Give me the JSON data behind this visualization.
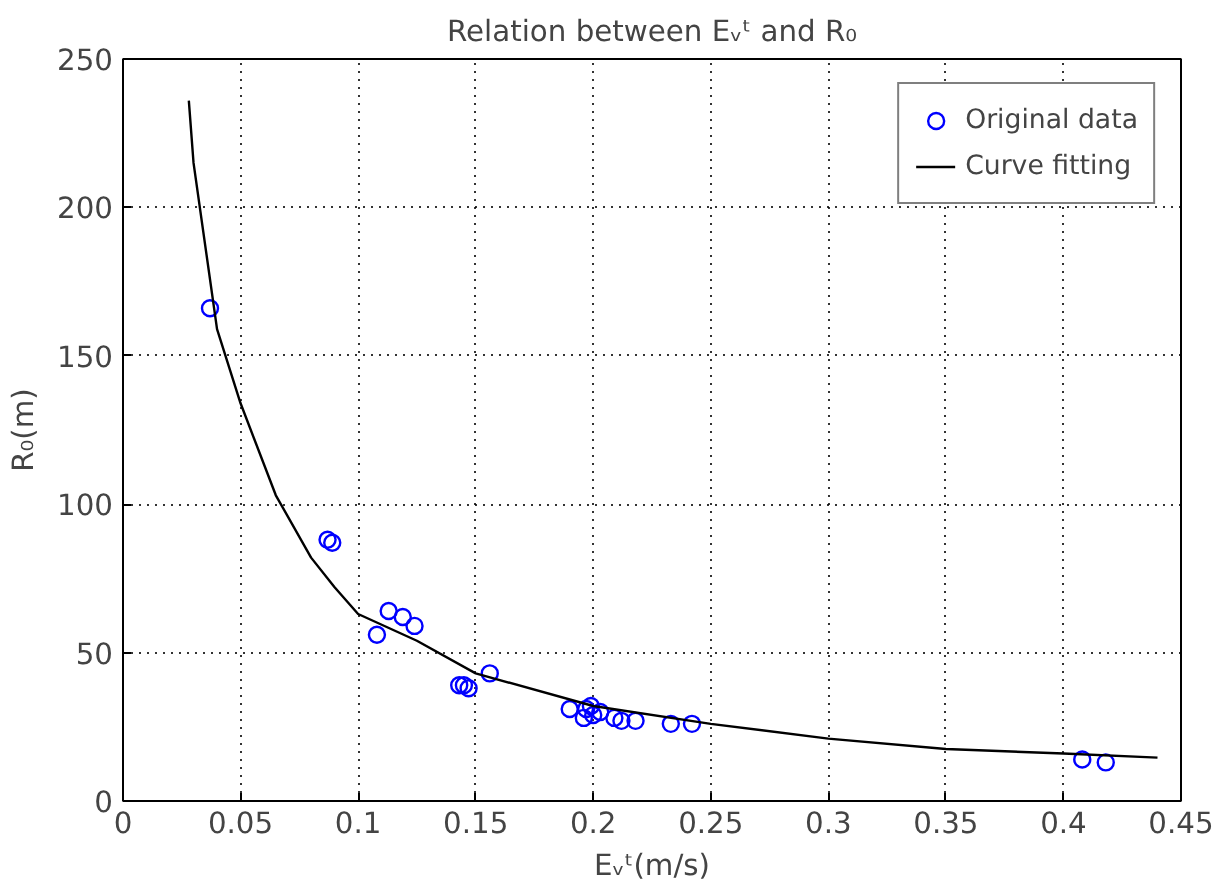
{
  "chart_data": {
    "type": "scatter",
    "title": "Relation between Eᵥᵗ and R₀",
    "xlabel": "Eᵥᵗ(m/s)",
    "ylabel": "R₀(m)",
    "xlim": [
      0,
      0.45
    ],
    "xticks": [
      0,
      0.05,
      0.1,
      0.15,
      0.2,
      0.25,
      0.3,
      0.35,
      0.4,
      0.45
    ],
    "ylim": [
      0,
      250
    ],
    "yticks": [
      0,
      50,
      100,
      150,
      200,
      250
    ],
    "grid": true,
    "legend": "top right",
    "series": [
      {
        "name": "Original data",
        "marker": "circle",
        "color": "#0000ff",
        "x": [
          0.037,
          0.087,
          0.089,
          0.108,
          0.113,
          0.119,
          0.124,
          0.143,
          0.145,
          0.147,
          0.156,
          0.19,
          0.196,
          0.197,
          0.199,
          0.2,
          0.203,
          0.209,
          0.212,
          0.218,
          0.233,
          0.242,
          0.408,
          0.418
        ],
        "values": [
          166,
          88,
          87,
          56,
          64,
          62,
          59,
          39,
          39,
          38,
          43,
          31,
          28,
          31,
          32,
          29,
          30,
          28,
          27,
          27,
          26,
          26,
          14,
          13
        ]
      },
      {
        "name": "Curve fitting",
        "type": "line",
        "marker": "none",
        "line_style": "solid",
        "color": "#000000",
        "x": [
          0.028,
          0.03,
          0.04,
          0.05,
          0.065,
          0.08,
          0.09,
          0.1,
          0.125,
          0.15,
          0.2,
          0.25,
          0.3,
          0.35,
          0.4,
          0.44
        ],
        "values": [
          236,
          215,
          159,
          134,
          103,
          82,
          72,
          63,
          54,
          43,
          32,
          26,
          21,
          17.5,
          16,
          14.6
        ]
      }
    ]
  }
}
